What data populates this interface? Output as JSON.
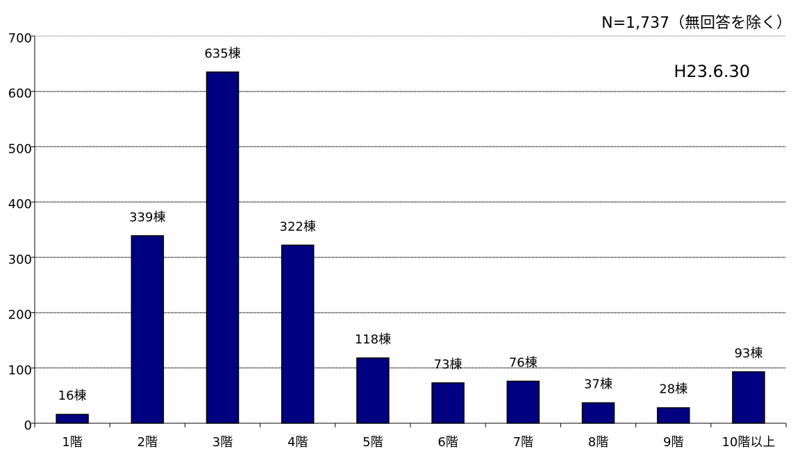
{
  "chart_data": {
    "type": "bar",
    "annotations": [
      "N=1,737（無回答を除く）",
      "H23.6.30"
    ],
    "categories": [
      "1階",
      "2階",
      "3階",
      "4階",
      "5階",
      "6階",
      "7階",
      "8階",
      "9階",
      "10階以上"
    ],
    "values": [
      16,
      339,
      635,
      322,
      118,
      73,
      76,
      37,
      28,
      93
    ],
    "value_labels": [
      "16棟",
      "339棟",
      "635棟",
      "322棟",
      "118棟",
      "73棟",
      "76棟",
      "37棟",
      "28棟",
      "93棟"
    ],
    "color": "#000080",
    "ylim": [
      0,
      700
    ],
    "yticks": [
      0,
      100,
      200,
      300,
      400,
      500,
      600,
      700
    ],
    "grid": true
  }
}
